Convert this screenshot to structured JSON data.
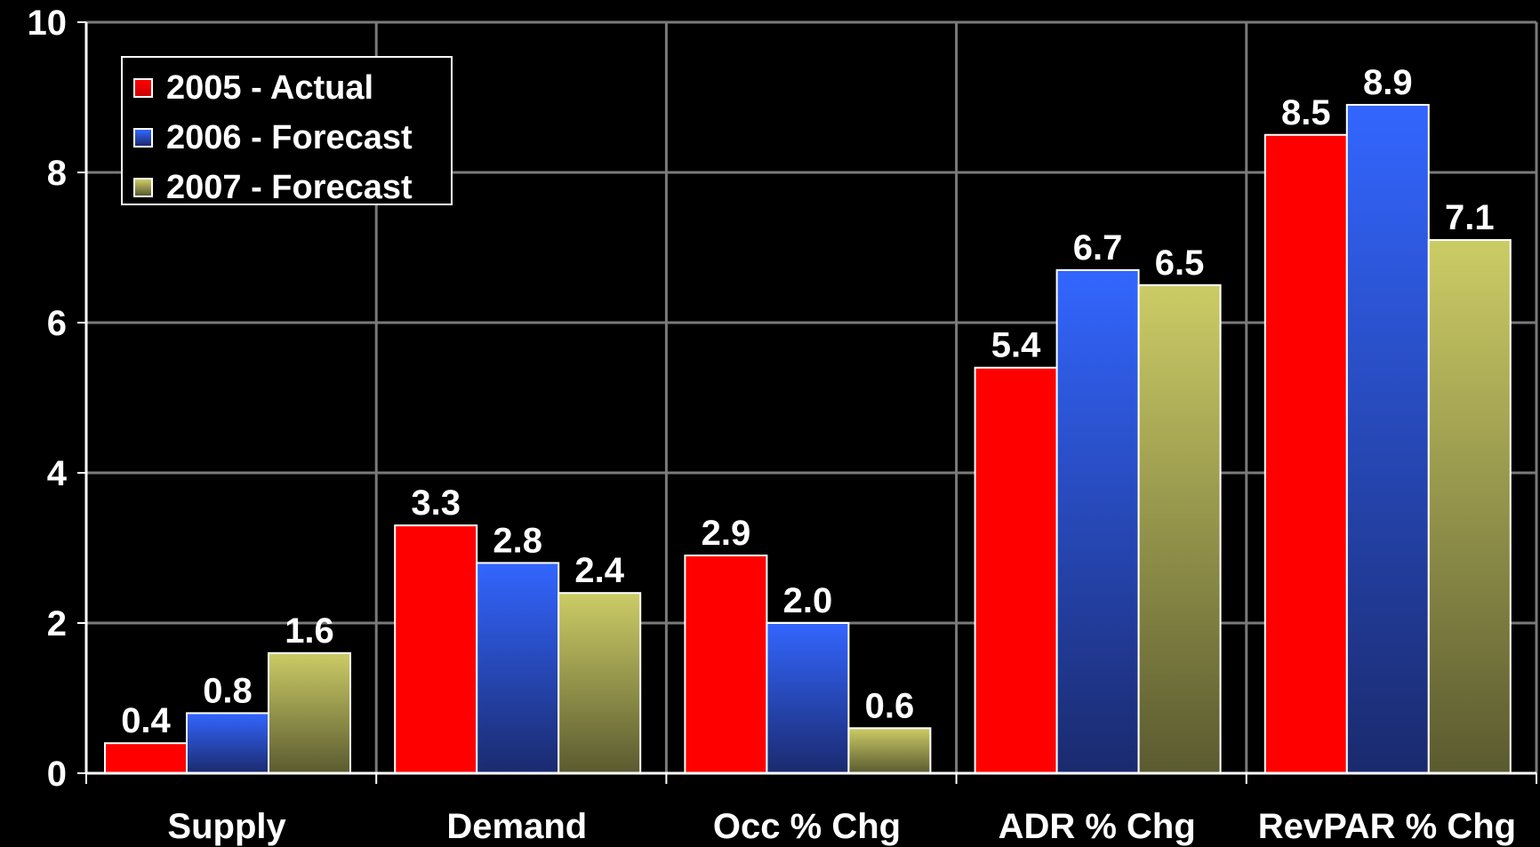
{
  "chart_data": {
    "type": "bar",
    "categories": [
      "Supply",
      "Demand",
      "Occ % Chg",
      "ADR % Chg",
      "RevPAR % Chg"
    ],
    "series": [
      {
        "name": "2005 - Actual",
        "values": [
          0.4,
          3.3,
          2.9,
          5.4,
          8.5
        ],
        "labels": [
          "0.4",
          "3.3",
          "2.9",
          "5.4",
          "8.5"
        ],
        "color": "#ff0000"
      },
      {
        "name": "2006 - Forecast",
        "values": [
          0.8,
          2.8,
          2.0,
          6.7,
          8.9
        ],
        "labels": [
          "0.8",
          "2.8",
          "2.0",
          "6.7",
          "8.9"
        ],
        "color": "#3366ff"
      },
      {
        "name": "2007 - Forecast",
        "values": [
          1.6,
          2.4,
          0.6,
          6.5,
          7.1
        ],
        "labels": [
          "1.6",
          "2.4",
          "0.6",
          "6.5",
          "7.1"
        ],
        "color": "#cccc66"
      }
    ],
    "ylim": [
      0,
      10
    ],
    "yticks": [
      "0",
      "2",
      "4",
      "6",
      "8",
      "10"
    ],
    "ytick_values": [
      0,
      2,
      4,
      6,
      8,
      10
    ],
    "grid": true,
    "legend_position": "top-left",
    "background": "#000000",
    "title": "",
    "xlabel": "",
    "ylabel": ""
  }
}
